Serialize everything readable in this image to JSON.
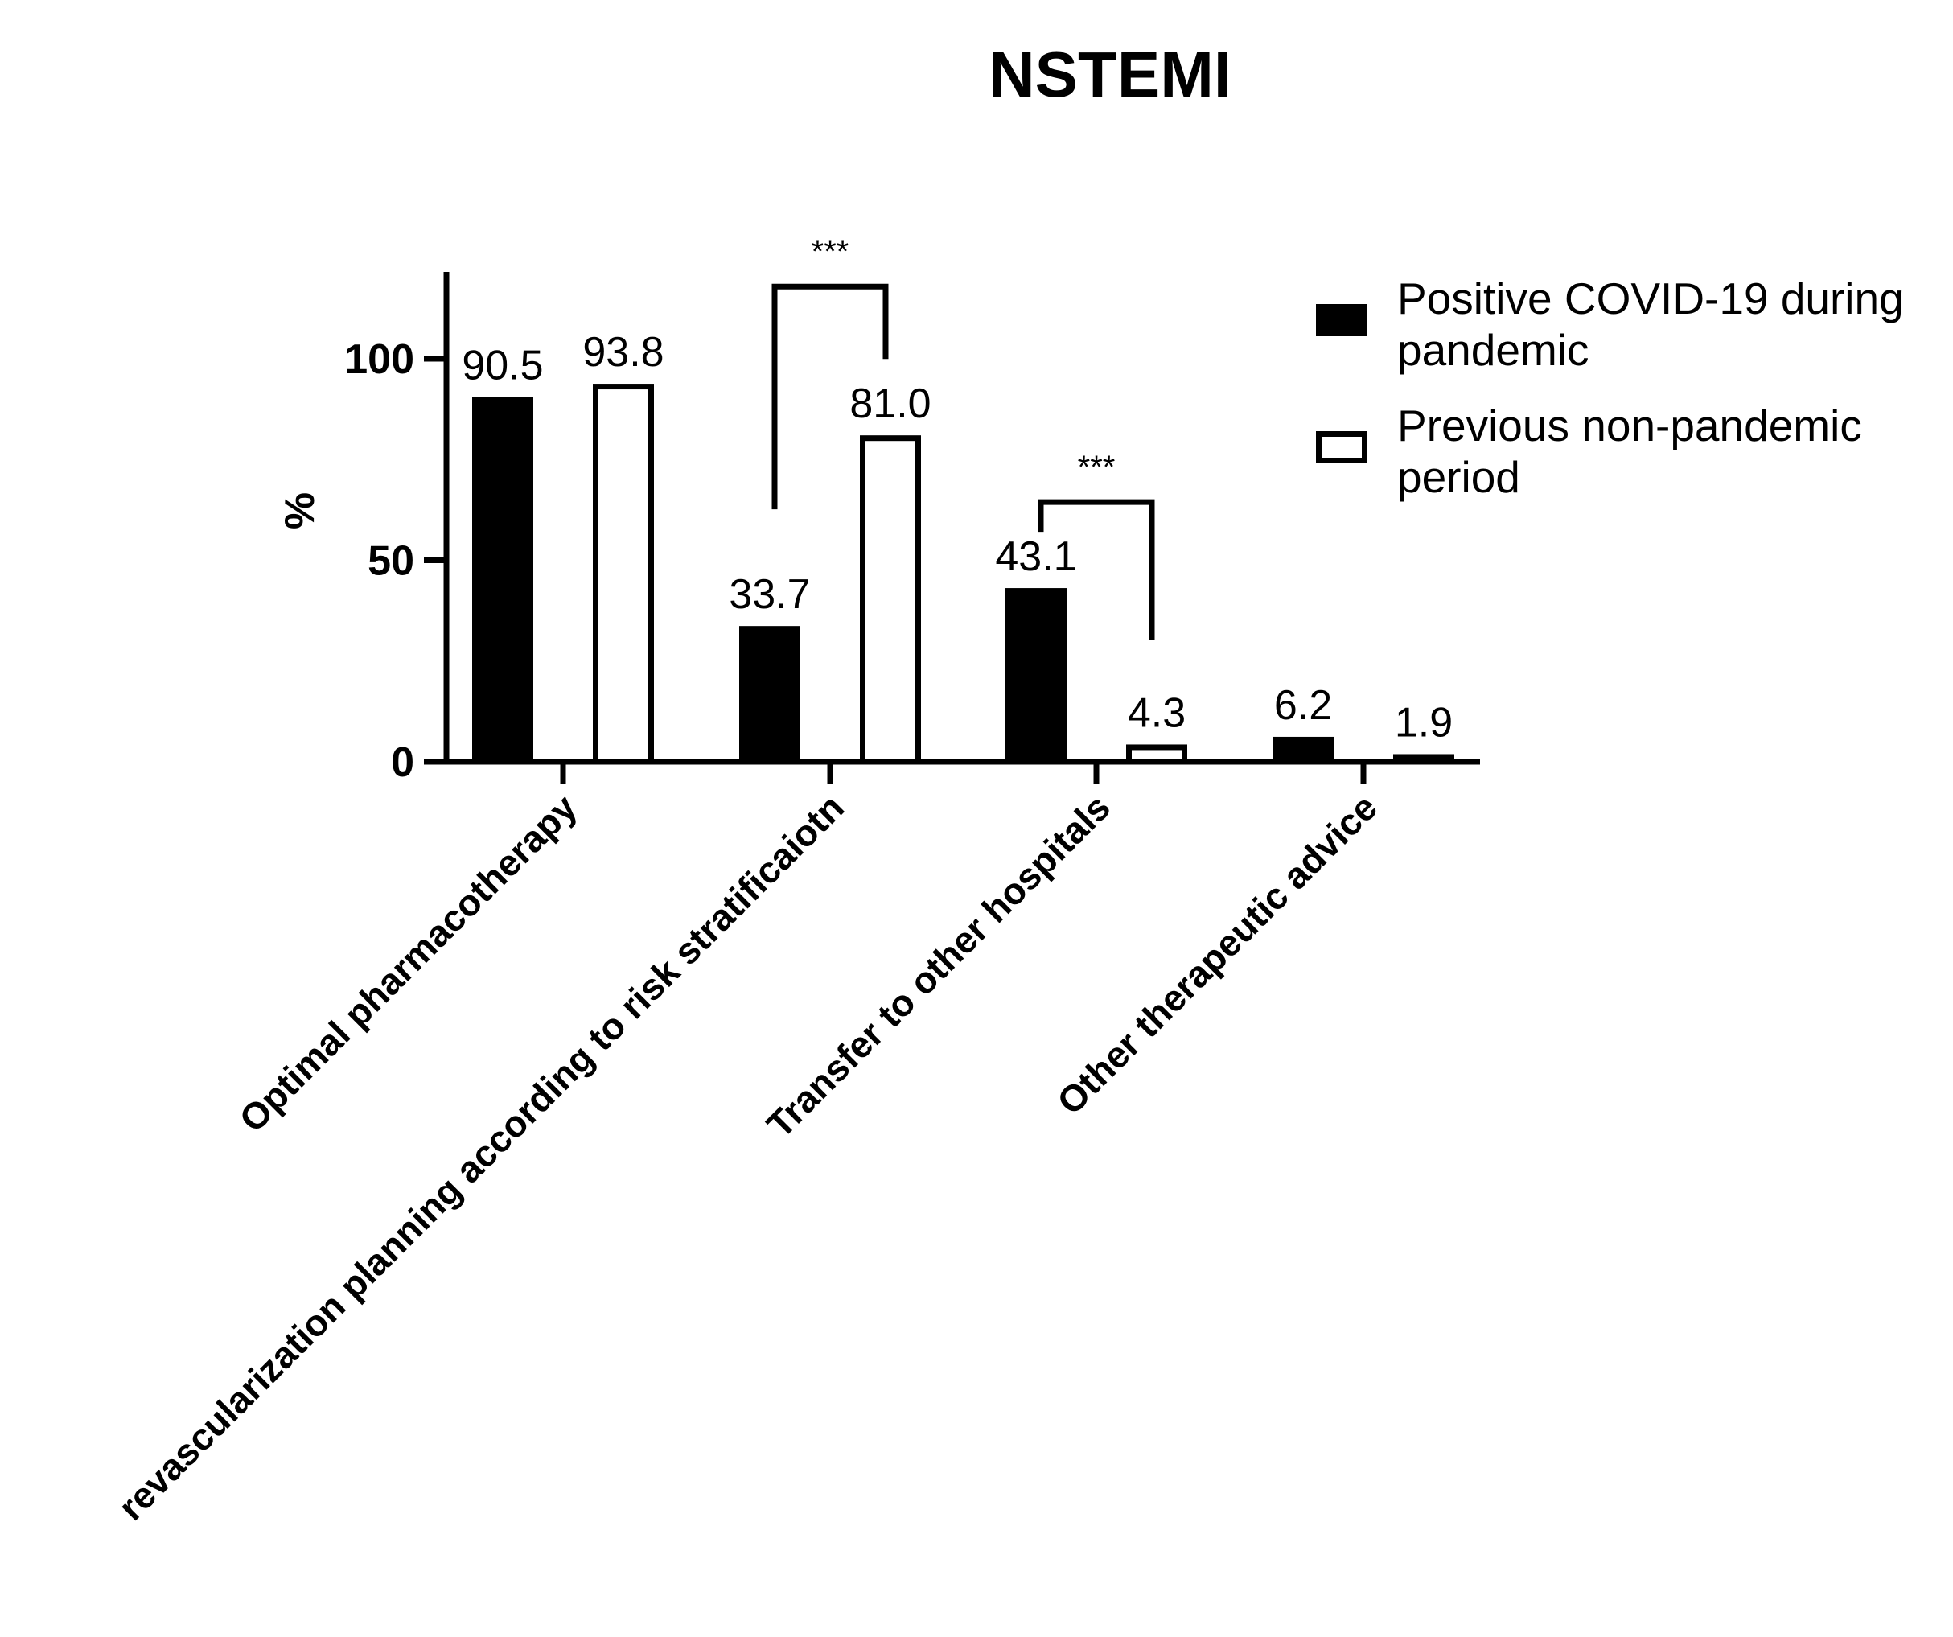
{
  "chart_data": {
    "type": "bar",
    "title": "NSTEMI",
    "ylabel": "%",
    "xlabel": "",
    "ylim": [
      0,
      120
    ],
    "yticks": [
      0,
      50,
      100
    ],
    "categories": [
      "Optimal pharmacotherapy",
      "revascularization planning according to risk stratificaiotn",
      "Transfer to other hospitals",
      "Other therapeutic advice"
    ],
    "series": [
      {
        "name": "Positive COVID-19 during pandemic",
        "values": [
          90.5,
          33.7,
          43.1,
          6.2
        ],
        "value_labels": [
          "90.5",
          "33.7",
          "43.1",
          "6.2"
        ],
        "fill": "#000000"
      },
      {
        "name": "Previous non-pandemic period",
        "values": [
          93.8,
          81.0,
          4.3,
          1.9
        ],
        "value_labels": [
          "93.8",
          "81.0",
          "4.3",
          "1.9"
        ],
        "fill": "#ffffff"
      }
    ],
    "significance": [
      {
        "category_index": 1,
        "label": "***"
      },
      {
        "category_index": 2,
        "label": "***"
      }
    ],
    "legend_position": "top-right",
    "grid": false
  }
}
